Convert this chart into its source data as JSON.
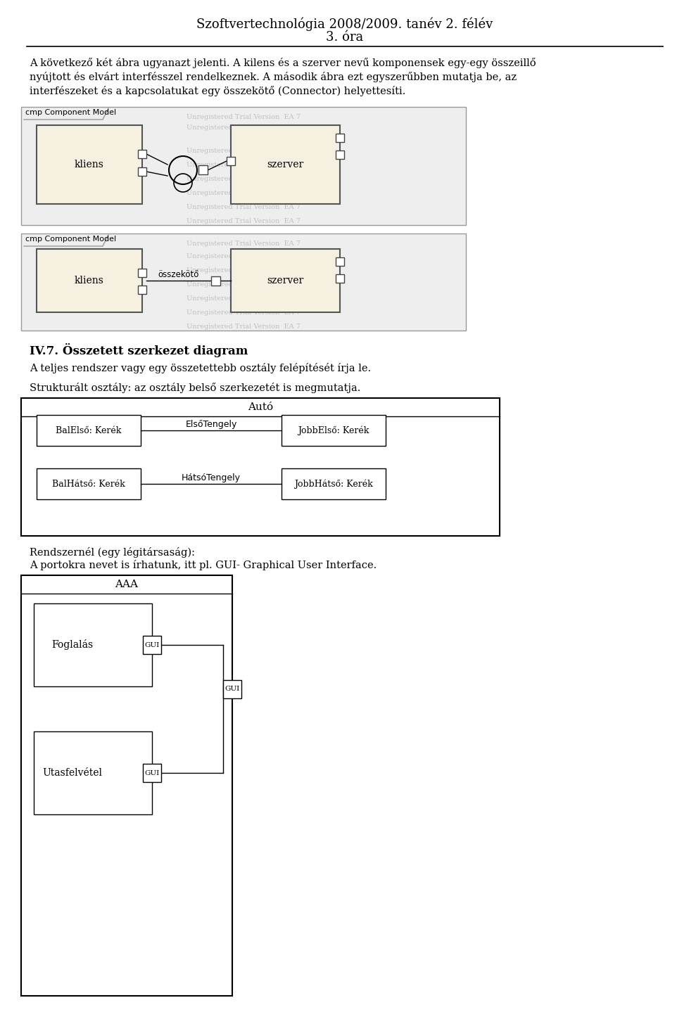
{
  "title_line1": "Szoftvertechnológia 2008/2009. tanév 2. félév",
  "title_line2": "3. óra",
  "para1_lines": [
    "A következő két ábra ugyanazt jelenti. A kilens és a szerver nevű komponensek egy-egy összeillő",
    "nyújtott és elvárt interfésszel rendelkeznek. A második ábra ezt egyszerűbben mutatja be, az",
    "interfészeket és a kapcsolatukat egy összekötő (Connector) helyettesíti."
  ],
  "diagram1_label": "cmp Component Model",
  "diagram1_kliens": "kliens",
  "diagram1_szerver": "szerver",
  "diagram2_label": "cmp Component Model",
  "diagram2_kliens": "kliens",
  "diagram2_ossz": "összekötő",
  "diagram2_szerver": "szerver",
  "heading": "IV.7. Összetett szerkezet diagram",
  "para2": "A teljes rendszer vagy egy összetettebb osztály felépítését írja le.",
  "para3": "Strukturált osztály: az osztály belső szerkezetét is megmutatja.",
  "auto_title": "Autó",
  "bal_elso": "BalElső: Kerék",
  "elso_tengely": "ElsőTengely",
  "jobb_elso": "JobbElső: Kerék",
  "bal_hatso": "BalHátső: Kerék",
  "hatso_tengely": "HátsóTengely",
  "jobb_hatso": "JobbHátső: Kerék",
  "para4a": "Rendszernél (egy légitársaság):",
  "para4b": "A portokra nevet is írhatunk, itt pl. GUI- Graphical User Interface.",
  "aaa_title": "AAA",
  "foglalas": "Foglalás",
  "utasfelvétel": "Utasfelvétel",
  "gui": "GUI",
  "bg_color": "#ffffff",
  "box_fill": "#f5f0e0",
  "watermark_text": "Unregistered Trial Version  EA 7"
}
